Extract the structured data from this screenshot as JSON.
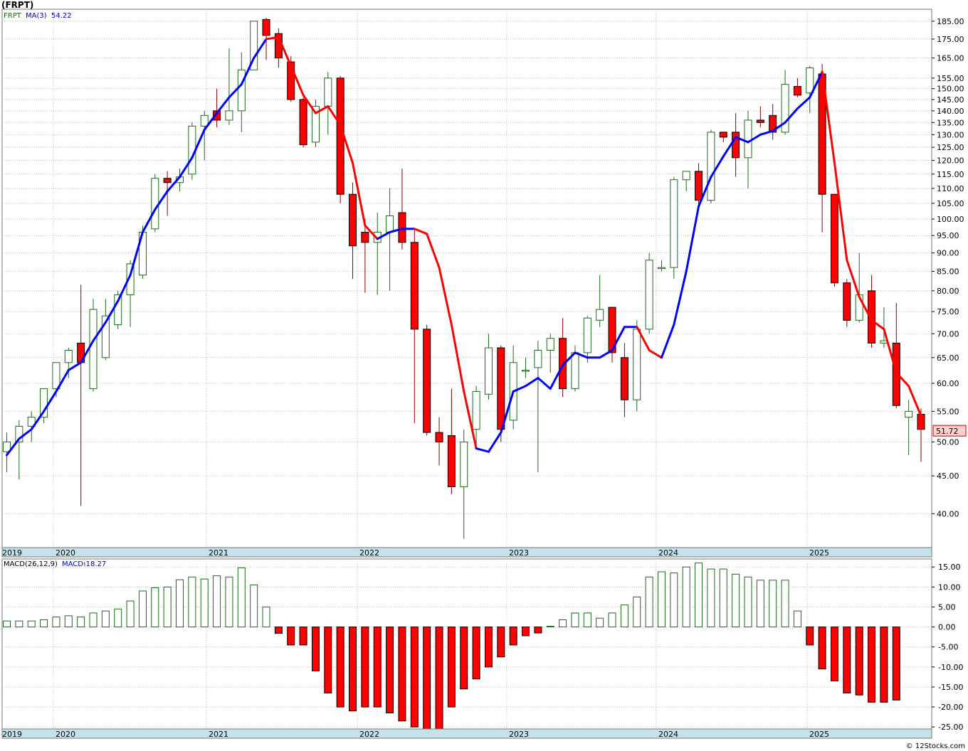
{
  "title": "(FRPT)",
  "watermark": "© 12Stocks.com",
  "colors": {
    "up": "#1a6b1a",
    "down": "#ff0000",
    "ma_up": "#0000ff",
    "ma_down": "#ff0000",
    "grid": "#b8b8b8",
    "axis_band": "#c5e2ec",
    "price_label_bg": "#ffd0d0"
  },
  "chart_data": [
    {
      "type": "candlestick",
      "title": "FRPT",
      "legend": {
        "symbol": "FRPT",
        "ma_label": "MA(3)",
        "ma_value": "54.22"
      },
      "scale": "log",
      "ylim": [
        36,
        192
      ],
      "y_ticks": [
        "40.00",
        "45.00",
        "50.00",
        "55.00",
        "60.00",
        "65.00",
        "70.00",
        "75.00",
        "80.00",
        "85.00",
        "90.00",
        "95.00",
        "100.00",
        "105.00",
        "110.00",
        "115.00",
        "120.00",
        "125.00",
        "130.00",
        "135.00",
        "140.00",
        "145.00",
        "150.00",
        "155.00",
        "165.00",
        "175.00",
        "185.00"
      ],
      "x_labels": [
        "2019",
        "2020",
        "2021",
        "2022",
        "2023",
        "2024",
        "2025"
      ],
      "last_price_label": "51.72",
      "candles": [
        [
          48.5,
          51.5,
          45.5,
          50.0
        ],
        [
          50.0,
          53.5,
          44.5,
          52.5
        ],
        [
          52.5,
          55.0,
          50.0,
          54.0
        ],
        [
          54.0,
          58.0,
          53.0,
          59.0
        ],
        [
          59.0,
          63.0,
          57.5,
          64.0
        ],
        [
          64.0,
          67.0,
          61.0,
          66.5
        ],
        [
          68.0,
          81.5,
          41.0,
          64.0
        ],
        [
          59.0,
          78.0,
          58.5,
          75.5
        ],
        [
          65.0,
          78.0,
          64.5,
          74.0
        ],
        [
          72.0,
          80.0,
          71.0,
          79.0
        ],
        [
          79.0,
          88.0,
          71.5,
          87.0
        ],
        [
          84.0,
          98.0,
          83.0,
          96.0
        ],
        [
          97.0,
          115.0,
          96.0,
          113.5
        ],
        [
          113.5,
          116.0,
          101.0,
          112.0
        ],
        [
          112.0,
          117.0,
          109.0,
          114.0
        ],
        [
          115.0,
          135.0,
          113.0,
          133.5
        ],
        [
          133.5,
          140.0,
          120.0,
          138.0
        ],
        [
          140.0,
          150.0,
          133.0,
          136.0
        ],
        [
          136.0,
          170.0,
          134.0,
          140.0
        ],
        [
          140.0,
          168.0,
          131.0,
          159.0
        ],
        [
          159.0,
          185.0,
          159.0,
          185.0
        ],
        [
          186.0,
          187.0,
          164.0,
          177.0
        ],
        [
          178.0,
          181.0,
          160.0,
          165.0
        ],
        [
          163.0,
          166.0,
          144.0,
          145.0
        ],
        [
          145.0,
          146.0,
          125.0,
          126.0
        ],
        [
          127.0,
          145.0,
          125.0,
          142.0
        ],
        [
          142.0,
          158.0,
          130.0,
          155.0
        ],
        [
          155.0,
          156.0,
          105.0,
          108.0
        ],
        [
          108.0,
          112.0,
          83.0,
          92.0
        ],
        [
          96.0,
          100.0,
          79.5,
          93.0
        ],
        [
          93.0,
          102.0,
          79.0,
          96.0
        ],
        [
          96.0,
          110.0,
          80.0,
          101.0
        ],
        [
          102.0,
          117.0,
          91.0,
          93.0
        ],
        [
          93.0,
          97.0,
          53.0,
          71.0
        ],
        [
          71.0,
          72.0,
          51.0,
          51.5
        ],
        [
          51.5,
          54.0,
          46.5,
          50.0
        ],
        [
          51.0,
          59.0,
          42.5,
          43.5
        ],
        [
          43.5,
          52.0,
          37.0,
          50.0
        ],
        [
          52.0,
          59.5,
          49.0,
          58.5
        ],
        [
          58.0,
          70.0,
          57.0,
          67.0
        ],
        [
          67.0,
          67.5,
          50.0,
          52.0
        ],
        [
          53.5,
          67.5,
          52.0,
          64.0
        ],
        [
          62.5,
          65.0,
          61.0,
          62.5
        ],
        [
          63.0,
          68.5,
          45.5,
          66.5
        ],
        [
          66.5,
          70.0,
          62.0,
          69.0
        ],
        [
          69.0,
          73.5,
          57.5,
          59.0
        ],
        [
          59.0,
          67.5,
          58.5,
          66.0
        ],
        [
          66.0,
          74.0,
          64.0,
          73.5
        ],
        [
          73.0,
          84.0,
          71.5,
          75.5
        ],
        [
          76.0,
          76.0,
          64.0,
          66.0
        ],
        [
          65.0,
          68.0,
          54.0,
          57.0
        ],
        [
          57.0,
          73.0,
          55.0,
          71.0
        ],
        [
          71.0,
          90.0,
          70.0,
          88.0
        ],
        [
          86.0,
          88.0,
          85.0,
          86.0
        ],
        [
          86.0,
          114.0,
          83.0,
          113.0
        ],
        [
          113.0,
          115.0,
          109.0,
          116.0
        ],
        [
          116.0,
          119.0,
          103.0,
          106.0
        ],
        [
          106.0,
          132.0,
          105.0,
          131.0
        ],
        [
          131.0,
          131.0,
          127.0,
          129.0
        ],
        [
          131.0,
          139.0,
          114.0,
          121.0
        ],
        [
          121.0,
          140.0,
          110.0,
          136.0
        ],
        [
          136.0,
          142.0,
          133.0,
          135.0
        ],
        [
          138.0,
          143.0,
          128.0,
          131.0
        ],
        [
          131.0,
          159.0,
          130.0,
          152.0
        ],
        [
          151.0,
          155.0,
          146.0,
          147.0
        ],
        [
          148.0,
          161.0,
          139.0,
          160.0
        ],
        [
          157.0,
          162.0,
          96.0,
          108.0
        ],
        [
          108.0,
          108.0,
          81.0,
          82.0
        ],
        [
          82.0,
          83.0,
          71.5,
          73.0
        ],
        [
          73.0,
          90.0,
          72.5,
          79.0
        ],
        [
          80.0,
          84.0,
          67.0,
          68.0
        ],
        [
          68.0,
          76.0,
          67.0,
          68.5
        ],
        [
          68.0,
          77.0,
          55.5,
          56.0
        ],
        [
          54.0,
          57.0,
          48.0,
          55.0
        ],
        [
          54.5,
          55.5,
          47.0,
          52.0
        ]
      ],
      "ma": [
        48.0,
        50.5,
        52.0,
        55.0,
        58.5,
        62.5,
        64.0,
        68.5,
        72.5,
        77.5,
        84.0,
        96.0,
        103.0,
        109.0,
        114.0,
        121.0,
        132.0,
        139.0,
        146.0,
        152.0,
        165.0,
        175.0,
        176.0,
        161.0,
        147.0,
        139.0,
        142.0,
        134.0,
        119.0,
        98.0,
        94.0,
        96.0,
        97.0,
        97.0,
        95.5,
        86.0,
        72.0,
        58.5,
        49.0,
        48.5,
        51.5,
        58.5,
        59.5,
        61.0,
        59.0,
        63.5,
        66.0,
        65.0,
        65.0,
        66.5,
        71.5,
        71.5,
        66.5,
        65.0,
        72.0,
        85.0,
        104.0,
        114.0,
        121.5,
        129.0,
        127.0,
        130.0,
        131.5,
        135.0,
        141.0,
        146.0,
        158.0,
        119.0,
        88.0,
        78.5,
        73.0,
        71.0,
        62.0,
        59.5,
        54.22
      ],
      "ma_dir": [
        1,
        1,
        1,
        1,
        1,
        1,
        1,
        1,
        1,
        1,
        1,
        1,
        1,
        1,
        1,
        1,
        1,
        1,
        1,
        1,
        1,
        1,
        0,
        0,
        0,
        0,
        0,
        0,
        0,
        0,
        0,
        1,
        1,
        1,
        0,
        0,
        0,
        0,
        0,
        1,
        1,
        1,
        1,
        1,
        1,
        1,
        1,
        1,
        1,
        1,
        1,
        1,
        0,
        0,
        1,
        1,
        1,
        1,
        1,
        1,
        1,
        1,
        1,
        1,
        1,
        1,
        1,
        0,
        0,
        0,
        0,
        0,
        0,
        0,
        0
      ]
    },
    {
      "type": "bar",
      "title": "MACD(26,12,9)",
      "legend": {
        "label": "MACD(26,12,9)",
        "value_label": "MACD:",
        "value": "-18.27"
      },
      "ylim": [
        -25.5,
        17
      ],
      "y_ticks": [
        "-25.00",
        "-20.00",
        "-15.00",
        "-10.00",
        "-5.00",
        "0.00",
        "5.00",
        "10.00",
        "15.00"
      ],
      "x_labels": [
        "2019",
        "2020",
        "2021",
        "2022",
        "2023",
        "2024",
        "2025"
      ],
      "values": [
        1.5,
        1.5,
        1.5,
        1.8,
        2.5,
        2.8,
        2.5,
        3.5,
        4.0,
        4.5,
        6.5,
        9.0,
        9.8,
        10.0,
        11.8,
        12.5,
        12.0,
        12.8,
        12.5,
        14.8,
        10.5,
        5.0,
        -1.6,
        -4.5,
        -4.5,
        -11.0,
        -16.5,
        -20.0,
        -21.0,
        -20.0,
        -20.0,
        -21.5,
        -23.5,
        -25.0,
        -25.5,
        -25.5,
        -20.0,
        -15.5,
        -13.0,
        -10.0,
        -7.5,
        -4.5,
        -2.2,
        -1.5,
        0.2,
        1.8,
        3.5,
        3.5,
        2.2,
        3.5,
        5.5,
        7.5,
        12.5,
        13.8,
        13.5,
        15.0,
        16.0,
        14.5,
        14.5,
        13.2,
        12.5,
        11.7,
        11.7,
        11.7,
        4.0,
        -4.5,
        -10.5,
        -13.5,
        -16.5,
        -17.0,
        -18.8,
        -18.8,
        -18.27
      ]
    }
  ]
}
